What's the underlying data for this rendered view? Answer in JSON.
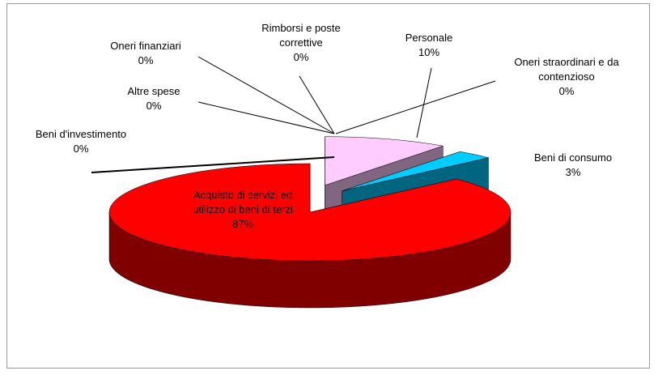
{
  "chart_data": {
    "type": "pie3d",
    "categories": [
      "Personale",
      "Oneri straordinari e da contenzioso",
      "Beni di consumo",
      "Acquisto di servizi ed utilizzo di beni di terzi",
      "Beni d'investimento",
      "Altre spese",
      "Oneri finanziari",
      "Rimborsi e poste correttive"
    ],
    "values": [
      10,
      0,
      3,
      87,
      0,
      0,
      0,
      0
    ],
    "value_labels": [
      "10%",
      "0%",
      "3%",
      "87%",
      "0%",
      "0%",
      "0%",
      "0%"
    ],
    "colors": [
      "#ffccff",
      "#9999ff",
      "#00ccff",
      "#ff0000",
      "#993366",
      "#ffffcc",
      "#ccffff",
      "#660066"
    ]
  }
}
